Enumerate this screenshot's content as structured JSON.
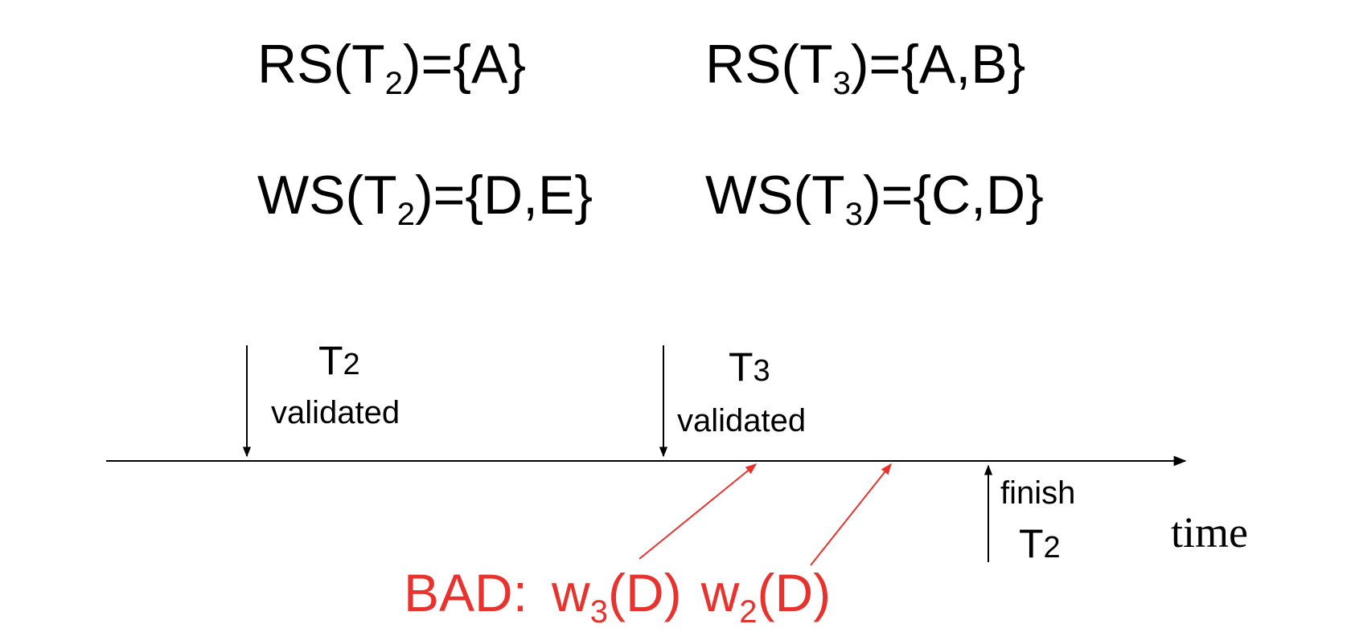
{
  "sets": {
    "rs_t2": {
      "prefix": "RS(T",
      "sub": "2",
      "suffix": ")={A}"
    },
    "rs_t3": {
      "prefix": "RS(T",
      "sub": "3",
      "suffix": ")={A,B}"
    },
    "ws_t2": {
      "prefix": "WS(T",
      "sub": "2",
      "suffix": ")={D,E}"
    },
    "ws_t3": {
      "prefix": "WS(T",
      "sub": "3",
      "suffix": ")={C,D}"
    }
  },
  "timeline": {
    "events": [
      {
        "name": "T",
        "name_suffix": "2",
        "label": "validated"
      },
      {
        "name": "T",
        "name_suffix": "3",
        "label": "validated"
      },
      {
        "name": "T",
        "name_suffix": "2",
        "label": "finish"
      }
    ],
    "axis_label": "time"
  },
  "note": {
    "label": "BAD:",
    "op1": {
      "prefix": "w",
      "sub": "3",
      "suffix": "(D)"
    },
    "op2": {
      "prefix": "w",
      "sub": "2",
      "suffix": "(D)"
    },
    "color": "#e8322d"
  }
}
